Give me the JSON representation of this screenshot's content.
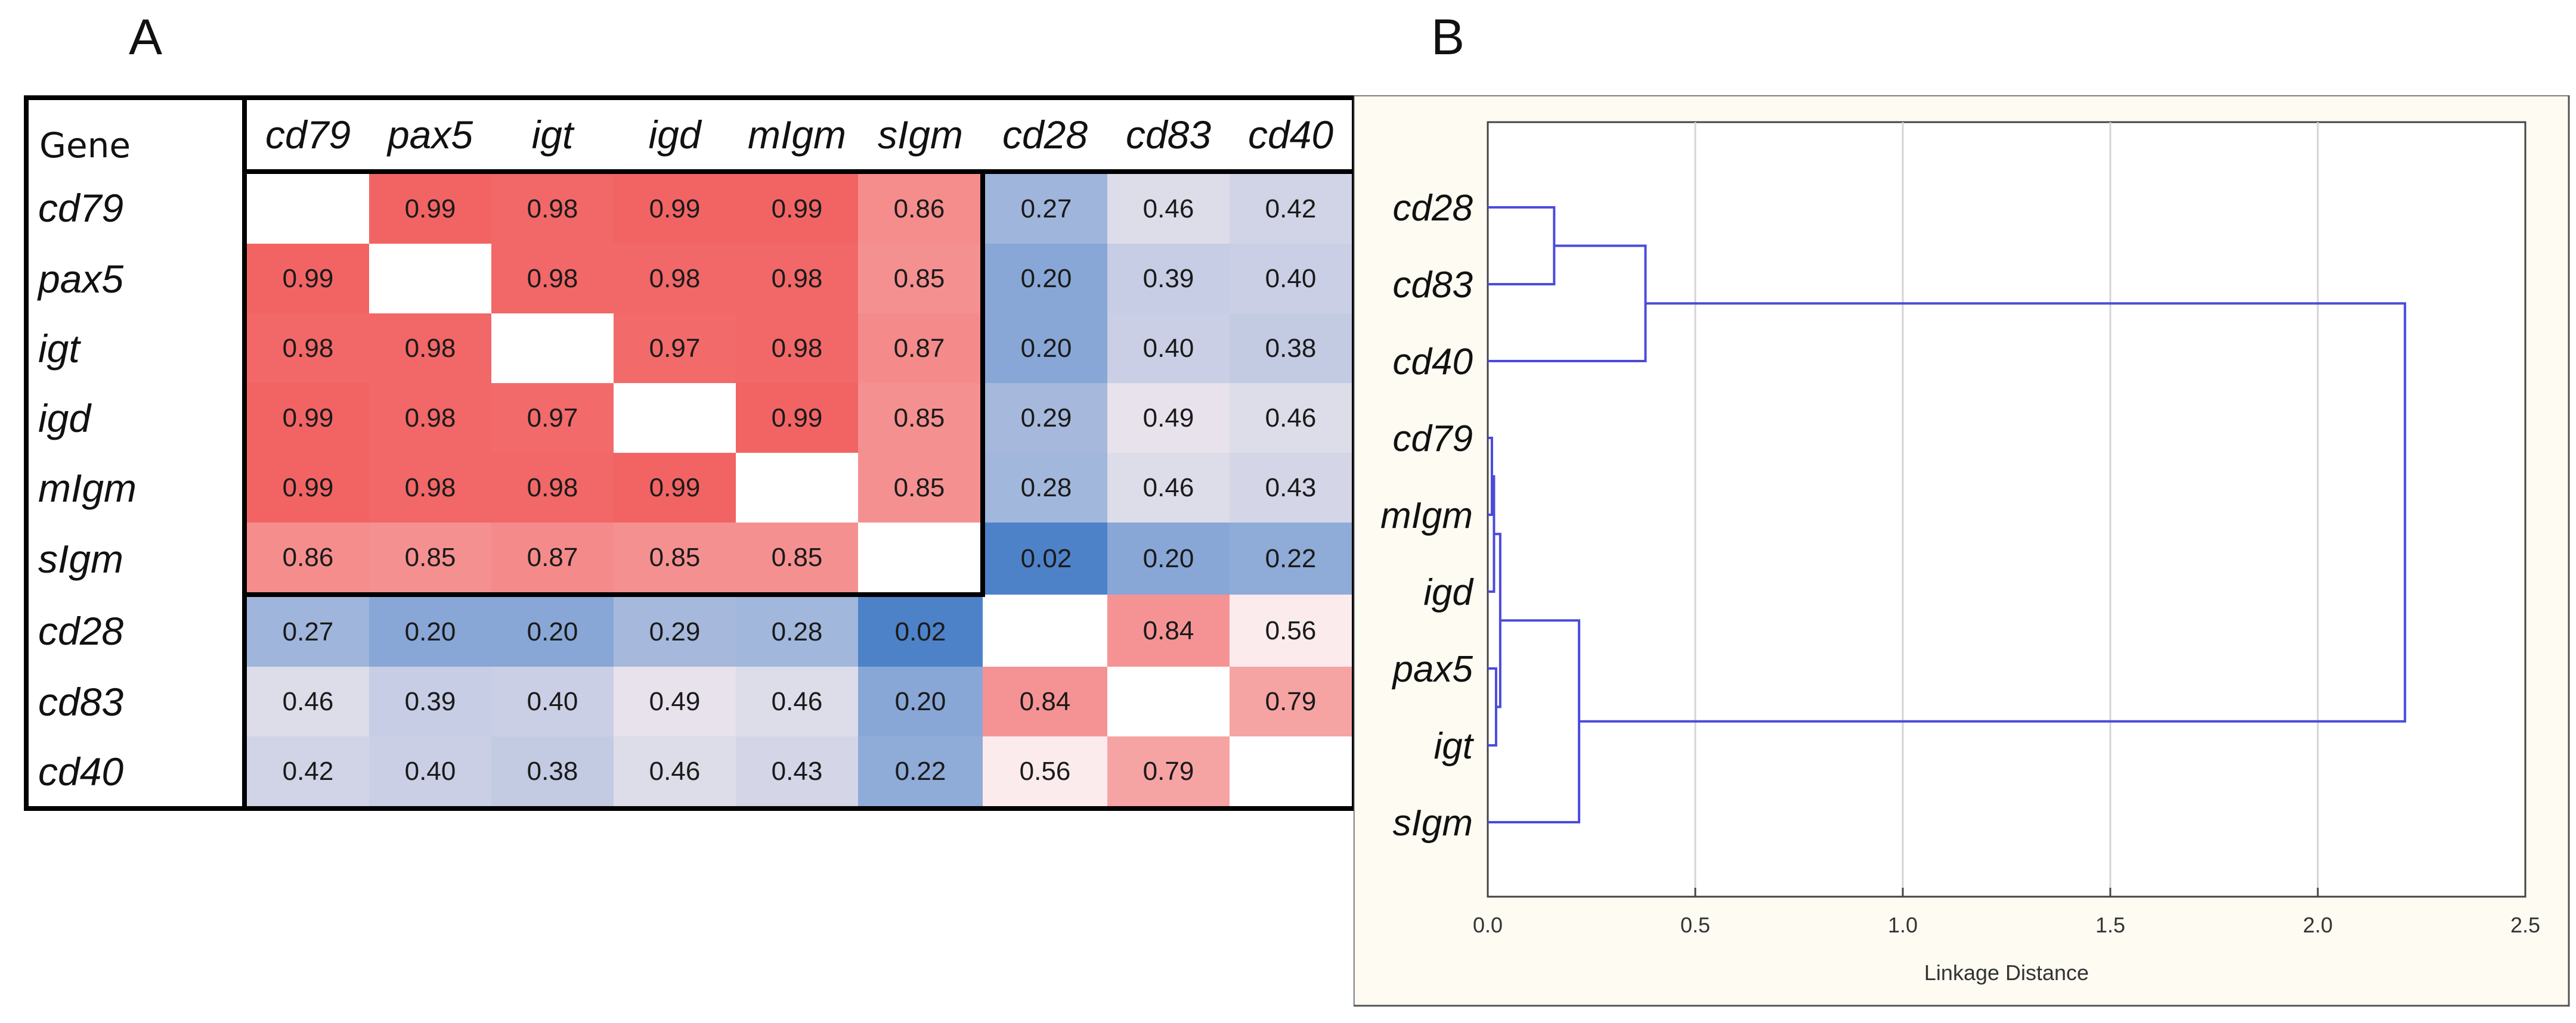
{
  "panels": {
    "a": "A",
    "b": "B"
  },
  "colors": {
    "high": "#f26464",
    "mid": "#fbeef0",
    "low": "#4d82c8",
    "dendro_line": "#4b4bdc",
    "dendro_bg": "#fdfbf2",
    "grid": "#d4d4d4"
  },
  "chart_data": [
    {
      "type": "heatmap",
      "title": "",
      "corner_label": "Gene",
      "columns": [
        "cd79",
        "pax5",
        "igt",
        "igd",
        "mIgm",
        "sIgm",
        "cd28",
        "cd83",
        "cd40"
      ],
      "rows": [
        "cd79",
        "pax5",
        "igt",
        "igd",
        "mIgm",
        "sIgm",
        "cd28",
        "cd83",
        "cd40"
      ],
      "values": [
        [
          null,
          0.99,
          0.98,
          0.99,
          0.99,
          0.86,
          0.27,
          0.46,
          0.42
        ],
        [
          0.99,
          null,
          0.98,
          0.98,
          0.98,
          0.85,
          0.2,
          0.39,
          0.4
        ],
        [
          0.98,
          0.98,
          null,
          0.97,
          0.98,
          0.87,
          0.2,
          0.4,
          0.38
        ],
        [
          0.99,
          0.98,
          0.97,
          null,
          0.99,
          0.85,
          0.29,
          0.49,
          0.46
        ],
        [
          0.99,
          0.98,
          0.98,
          0.99,
          null,
          0.85,
          0.28,
          0.46,
          0.43
        ],
        [
          0.86,
          0.85,
          0.87,
          0.85,
          0.85,
          null,
          0.02,
          0.2,
          0.22
        ],
        [
          0.27,
          0.2,
          0.2,
          0.29,
          0.28,
          0.02,
          null,
          0.84,
          0.56
        ],
        [
          0.46,
          0.39,
          0.4,
          0.49,
          0.46,
          0.2,
          0.84,
          null,
          0.79
        ],
        [
          0.42,
          0.4,
          0.38,
          0.46,
          0.43,
          0.22,
          0.56,
          0.79,
          null
        ]
      ],
      "labels": [
        [
          "",
          "0.99",
          "0.98",
          "0.99",
          "0.99",
          "0.86",
          "0.27",
          "0.46",
          "0.42"
        ],
        [
          "0.99",
          "",
          "0.98",
          "0.98",
          "0.98",
          "0.85",
          "0.20",
          "0.39",
          "0.40"
        ],
        [
          "0.98",
          "0.98",
          "",
          "0.97",
          "0.98",
          "0.87",
          "0.20",
          "0.40",
          "0.38"
        ],
        [
          "0.99",
          "0.98",
          "0.97",
          "",
          "0.99",
          "0.85",
          "0.29",
          "0.49",
          "0.46"
        ],
        [
          "0.99",
          "0.98",
          "0.98",
          "0.99",
          "",
          "0.85",
          "0.28",
          "0.46",
          "0.43"
        ],
        [
          "0.86",
          "0.85",
          "0.87",
          "0.85",
          "0.85",
          "",
          "0.02",
          "0.20",
          "0.22"
        ],
        [
          "0.27",
          "0.20",
          "0.20",
          "0.29",
          "0.28",
          "0.02",
          "",
          "0.84",
          "0.56"
        ],
        [
          "0.46",
          "0.39",
          "0.40",
          "0.49",
          "0.46",
          "0.20",
          "0.84",
          "",
          "0.79"
        ],
        [
          "0.42",
          "0.40",
          "0.38",
          "0.46",
          "0.43",
          "0.22",
          "0.56",
          "0.79",
          ""
        ]
      ],
      "highlight_block": {
        "rows": [
          "cd79",
          "sIgm"
        ],
        "columns": [
          "cd79",
          "sIgm"
        ]
      }
    },
    {
      "type": "dendrogram",
      "orientation": "horizontal",
      "leaves": [
        "cd28",
        "cd83",
        "cd40",
        "cd79",
        "mIgm",
        "igd",
        "pax5",
        "igt",
        "sIgm"
      ],
      "xlabel": "Linkage Distance",
      "xlim": [
        0,
        2.5
      ],
      "xticks": [
        0.0,
        0.5,
        1.0,
        1.5,
        2.0,
        2.5
      ],
      "xtick_labels": [
        "0.0",
        "0.5",
        "1.0",
        "1.5",
        "2.0",
        "2.5"
      ],
      "merges": [
        {
          "a": "cd79",
          "b": "mIgm",
          "height": 0.01,
          "node": "n1"
        },
        {
          "a": "pax5",
          "b": "igt",
          "height": 0.02,
          "node": "n2"
        },
        {
          "a": "n1",
          "b": "igd",
          "height": 0.015,
          "node": "n3"
        },
        {
          "a": "n3",
          "b": "n2",
          "height": 0.03,
          "node": "n4"
        },
        {
          "a": "cd28",
          "b": "cd83",
          "height": 0.16,
          "node": "n5"
        },
        {
          "a": "n4",
          "b": "sIgm",
          "height": 0.22,
          "node": "n6"
        },
        {
          "a": "n5",
          "b": "cd40",
          "height": 0.38,
          "node": "n7"
        },
        {
          "a": "n7",
          "b": "n6",
          "height": 2.21,
          "node": "n8"
        }
      ]
    }
  ]
}
